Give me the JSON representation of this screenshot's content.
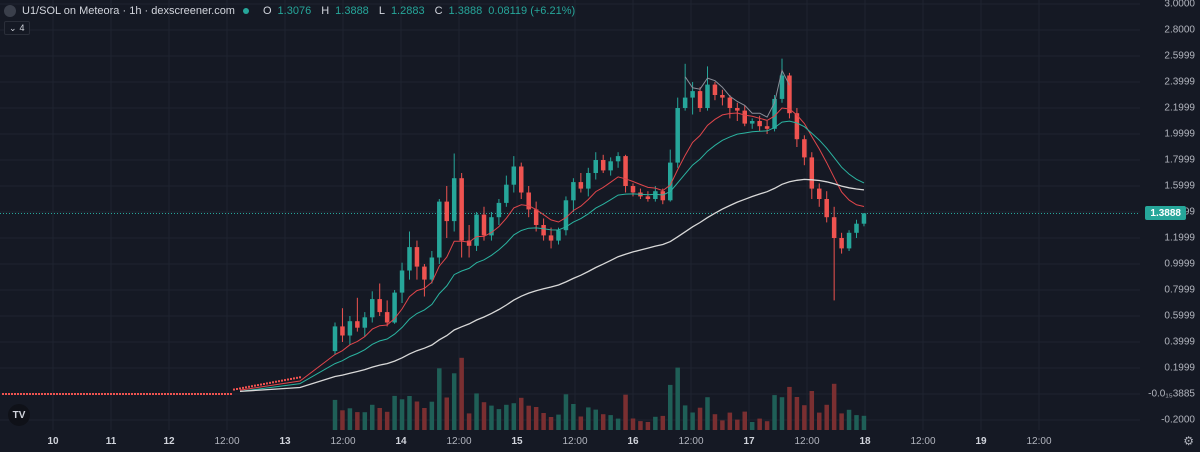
{
  "legend": {
    "symbol": "U1/SOL on Meteora · 1h · dexscreener.com",
    "open_label": "O",
    "open": "1.3076",
    "high_label": "H",
    "high": "1.3888",
    "low_label": "L",
    "low": "1.2883",
    "close_label": "C",
    "close": "1.3888",
    "change": "0.08119 (+6.21%)"
  },
  "indicators_toggle": {
    "count": "4"
  },
  "last_price_tag": "1.3888",
  "y_axis_labels": [
    "3.0000",
    "2.8000",
    "2.5999",
    "2.3999",
    "2.1999",
    "1.9999",
    "1.7999",
    "1.5999",
    "1.3999",
    "1.1999",
    "0.9999",
    "0.7999",
    "0.5999",
    "0.3999",
    "0.1999",
    "-0.0₁₅3885",
    "-0.2000"
  ],
  "x_axis_labels": [
    {
      "t": "10",
      "day": true
    },
    {
      "t": "11",
      "day": true
    },
    {
      "t": "12",
      "day": true
    },
    {
      "t": "12:00",
      "day": false
    },
    {
      "t": "13",
      "day": true
    },
    {
      "t": "12:00",
      "day": false
    },
    {
      "t": "14",
      "day": true
    },
    {
      "t": "12:00",
      "day": false
    },
    {
      "t": "15",
      "day": true
    },
    {
      "t": "12:00",
      "day": false
    },
    {
      "t": "16",
      "day": true
    },
    {
      "t": "12:00",
      "day": false
    },
    {
      "t": "17",
      "day": true
    },
    {
      "t": "12:00",
      "day": false
    },
    {
      "t": "18",
      "day": true
    },
    {
      "t": "12:00",
      "day": false
    },
    {
      "t": "19",
      "day": true
    },
    {
      "t": "12:00",
      "day": false
    }
  ],
  "colors": {
    "background": "#151924",
    "grid": "#1f2430",
    "up": "#26a69a",
    "down": "#ef5350",
    "ma_fast": "#e0464b",
    "ma_mid": "#2bb3a0",
    "ma_slow": "#d8d8d8",
    "ma_hl": "#8a8e98"
  },
  "icons": {
    "tradingview": "tradingview-logo-icon",
    "settings": "gear-icon",
    "collapse": "chevron-down-icon"
  },
  "tv_logo_text": "TV",
  "chart_data": {
    "type": "candlestick",
    "price_range": [
      -0.2,
      3.0
    ],
    "candles": [
      {
        "o": 0.33,
        "h": 0.55,
        "l": 0.3,
        "c": 0.52
      },
      {
        "o": 0.52,
        "h": 0.66,
        "l": 0.4,
        "c": 0.45
      },
      {
        "o": 0.45,
        "h": 0.6,
        "l": 0.38,
        "c": 0.56
      },
      {
        "o": 0.56,
        "h": 0.74,
        "l": 0.48,
        "c": 0.51
      },
      {
        "o": 0.51,
        "h": 0.63,
        "l": 0.44,
        "c": 0.59
      },
      {
        "o": 0.59,
        "h": 0.79,
        "l": 0.55,
        "c": 0.73
      },
      {
        "o": 0.73,
        "h": 0.85,
        "l": 0.6,
        "c": 0.63
      },
      {
        "o": 0.63,
        "h": 0.72,
        "l": 0.52,
        "c": 0.55
      },
      {
        "o": 0.55,
        "h": 0.8,
        "l": 0.54,
        "c": 0.78
      },
      {
        "o": 0.78,
        "h": 1.01,
        "l": 0.7,
        "c": 0.95
      },
      {
        "o": 0.95,
        "h": 1.25,
        "l": 0.88,
        "c": 1.13
      },
      {
        "o": 1.13,
        "h": 1.18,
        "l": 0.88,
        "c": 0.98
      },
      {
        "o": 0.98,
        "h": 1.0,
        "l": 0.75,
        "c": 0.88
      },
      {
        "o": 0.88,
        "h": 1.1,
        "l": 0.85,
        "c": 1.05
      },
      {
        "o": 1.05,
        "h": 1.5,
        "l": 1.0,
        "c": 1.48
      },
      {
        "o": 1.48,
        "h": 1.6,
        "l": 1.2,
        "c": 1.33
      },
      {
        "o": 1.33,
        "h": 1.85,
        "l": 1.25,
        "c": 1.66
      },
      {
        "o": 1.66,
        "h": 1.7,
        "l": 1.05,
        "c": 1.18
      },
      {
        "o": 1.18,
        "h": 1.3,
        "l": 1.05,
        "c": 1.14
      },
      {
        "o": 1.14,
        "h": 1.4,
        "l": 1.1,
        "c": 1.38
      },
      {
        "o": 1.38,
        "h": 1.44,
        "l": 1.18,
        "c": 1.22
      },
      {
        "o": 1.22,
        "h": 1.4,
        "l": 1.18,
        "c": 1.36
      },
      {
        "o": 1.36,
        "h": 1.5,
        "l": 1.3,
        "c": 1.47
      },
      {
        "o": 1.47,
        "h": 1.68,
        "l": 1.44,
        "c": 1.61
      },
      {
        "o": 1.61,
        "h": 1.83,
        "l": 1.55,
        "c": 1.75
      },
      {
        "o": 1.75,
        "h": 1.78,
        "l": 1.5,
        "c": 1.55
      },
      {
        "o": 1.55,
        "h": 1.6,
        "l": 1.36,
        "c": 1.42
      },
      {
        "o": 1.42,
        "h": 1.48,
        "l": 1.25,
        "c": 1.3
      },
      {
        "o": 1.3,
        "h": 1.35,
        "l": 1.18,
        "c": 1.22
      },
      {
        "o": 1.22,
        "h": 1.28,
        "l": 1.12,
        "c": 1.18
      },
      {
        "o": 1.18,
        "h": 1.28,
        "l": 1.15,
        "c": 1.26
      },
      {
        "o": 1.26,
        "h": 1.52,
        "l": 1.22,
        "c": 1.49
      },
      {
        "o": 1.49,
        "h": 1.66,
        "l": 1.4,
        "c": 1.63
      },
      {
        "o": 1.63,
        "h": 1.7,
        "l": 1.55,
        "c": 1.58
      },
      {
        "o": 1.58,
        "h": 1.74,
        "l": 1.52,
        "c": 1.7
      },
      {
        "o": 1.7,
        "h": 1.86,
        "l": 1.65,
        "c": 1.8
      },
      {
        "o": 1.8,
        "h": 1.84,
        "l": 1.7,
        "c": 1.72
      },
      {
        "o": 1.72,
        "h": 1.82,
        "l": 1.68,
        "c": 1.79
      },
      {
        "o": 1.79,
        "h": 1.86,
        "l": 1.74,
        "c": 1.83
      },
      {
        "o": 1.83,
        "h": 1.84,
        "l": 1.55,
        "c": 1.6
      },
      {
        "o": 1.6,
        "h": 1.62,
        "l": 1.52,
        "c": 1.55
      },
      {
        "o": 1.55,
        "h": 1.58,
        "l": 1.5,
        "c": 1.52
      },
      {
        "o": 1.52,
        "h": 1.56,
        "l": 1.48,
        "c": 1.5
      },
      {
        "o": 1.5,
        "h": 1.6,
        "l": 1.48,
        "c": 1.56
      },
      {
        "o": 1.56,
        "h": 1.58,
        "l": 1.46,
        "c": 1.49
      },
      {
        "o": 1.49,
        "h": 1.88,
        "l": 1.48,
        "c": 1.78
      },
      {
        "o": 1.78,
        "h": 2.28,
        "l": 1.74,
        "c": 2.2
      },
      {
        "o": 2.2,
        "h": 2.54,
        "l": 2.18,
        "c": 2.28
      },
      {
        "o": 2.28,
        "h": 2.4,
        "l": 2.15,
        "c": 2.33
      },
      {
        "o": 2.33,
        "h": 2.36,
        "l": 2.17,
        "c": 2.2
      },
      {
        "o": 2.2,
        "h": 2.52,
        "l": 2.18,
        "c": 2.38
      },
      {
        "o": 2.38,
        "h": 2.4,
        "l": 2.26,
        "c": 2.3
      },
      {
        "o": 2.3,
        "h": 2.34,
        "l": 2.22,
        "c": 2.28
      },
      {
        "o": 2.28,
        "h": 2.3,
        "l": 2.12,
        "c": 2.2
      },
      {
        "o": 2.2,
        "h": 2.24,
        "l": 2.1,
        "c": 2.18
      },
      {
        "o": 2.18,
        "h": 2.22,
        "l": 2.06,
        "c": 2.08
      },
      {
        "o": 2.08,
        "h": 2.12,
        "l": 2.04,
        "c": 2.1
      },
      {
        "o": 2.1,
        "h": 2.14,
        "l": 2.02,
        "c": 2.06
      },
      {
        "o": 2.06,
        "h": 2.1,
        "l": 2.0,
        "c": 2.04
      },
      {
        "o": 2.04,
        "h": 2.3,
        "l": 2.02,
        "c": 2.27
      },
      {
        "o": 2.27,
        "h": 2.58,
        "l": 2.24,
        "c": 2.45
      },
      {
        "o": 2.45,
        "h": 2.47,
        "l": 2.12,
        "c": 2.16
      },
      {
        "o": 2.16,
        "h": 2.2,
        "l": 1.9,
        "c": 1.96
      },
      {
        "o": 1.96,
        "h": 1.99,
        "l": 1.76,
        "c": 1.82
      },
      {
        "o": 1.82,
        "h": 1.86,
        "l": 1.5,
        "c": 1.58
      },
      {
        "o": 1.58,
        "h": 1.62,
        "l": 1.44,
        "c": 1.5
      },
      {
        "o": 1.5,
        "h": 1.56,
        "l": 1.32,
        "c": 1.36
      },
      {
        "o": 1.36,
        "h": 1.44,
        "l": 0.72,
        "c": 1.2
      },
      {
        "o": 1.2,
        "h": 1.24,
        "l": 1.08,
        "c": 1.12
      },
      {
        "o": 1.12,
        "h": 1.26,
        "l": 1.1,
        "c": 1.24
      },
      {
        "o": 1.24,
        "h": 1.34,
        "l": 1.2,
        "c": 1.31
      },
      {
        "o": 1.31,
        "h": 1.39,
        "l": 1.29,
        "c": 1.39
      }
    ]
  }
}
